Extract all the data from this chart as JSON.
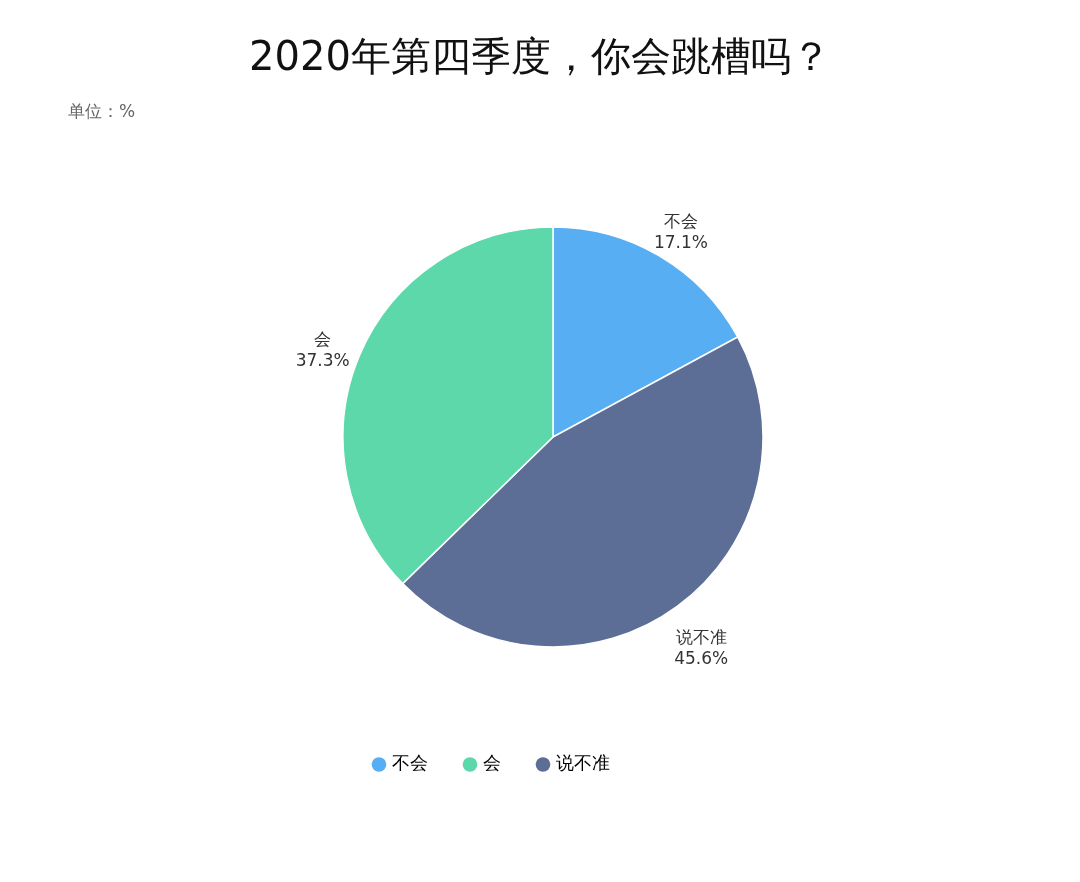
{
  "chart_data": {
    "type": "pie",
    "title": "2020年第四季度，你会跳槽吗？",
    "subtitle": "单位：%",
    "categories": [
      "不会",
      "说不准",
      "会"
    ],
    "values": [
      17.1,
      45.6,
      37.3
    ],
    "colors": [
      "#58aef3",
      "#5d6e96",
      "#5cd8ab"
    ],
    "value_labels": [
      "17.1%",
      "45.6%",
      "37.3%"
    ],
    "legend": "bottom"
  }
}
